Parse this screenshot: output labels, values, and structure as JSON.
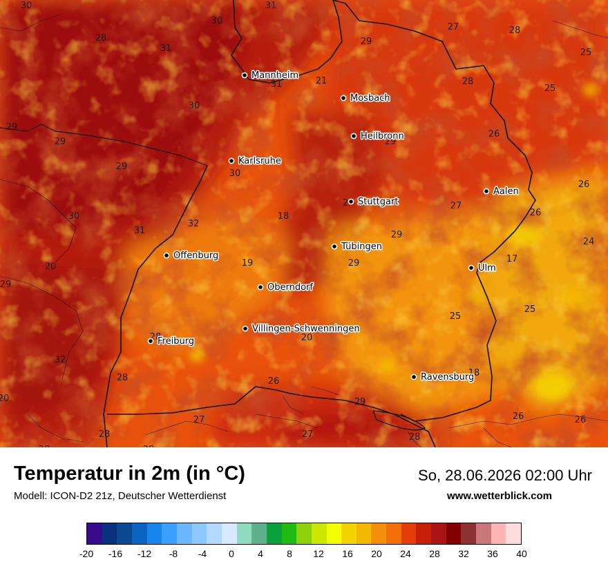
{
  "title": "Temperatur in 2m (in °C)",
  "subtitle": "Modell: ICON-D2 21z, Deutscher Wetterdienst",
  "datetime": "So, 28.06.2026 02:00 Uhr",
  "website": "www.wetterblick.com",
  "colorbar": {
    "min": -20,
    "max": 40,
    "step": 2,
    "tick_labels": [
      "-20",
      "-16",
      "-12",
      "-8",
      "-4",
      "0",
      "4",
      "8",
      "12",
      "16",
      "20",
      "24",
      "28",
      "32",
      "36",
      "40"
    ],
    "colors": [
      "#3a0a8c",
      "#07317c",
      "#0a4890",
      "#0b63c4",
      "#1786ec",
      "#3aa0ff",
      "#6cb8ff",
      "#8dc8ff",
      "#b4d9ff",
      "#d6e9ff",
      "#8fdbbf",
      "#5fb08c",
      "#0aa03c",
      "#20bb10",
      "#8fd00a",
      "#cde800",
      "#f4ff00",
      "#f4d400",
      "#f4b800",
      "#f48e0a",
      "#f46e0a",
      "#e63c0a",
      "#c81e0a",
      "#aa1414",
      "#820000",
      "#8c3232",
      "#c87878",
      "#ffb4b4",
      "#ffdcdc"
    ]
  },
  "cities": [
    {
      "name": "Mannheim"
    },
    {
      "name": "Mosbach"
    },
    {
      "name": "Heilbronn"
    },
    {
      "name": "Karlsruhe"
    },
    {
      "name": "Stuttgart"
    },
    {
      "name": "Aalen"
    },
    {
      "name": "Tübingen"
    },
    {
      "name": "Offenburg"
    },
    {
      "name": "Ulm"
    },
    {
      "name": "Oberndorf"
    },
    {
      "name": "Villingen-Schwenningen"
    },
    {
      "name": "Freiburg"
    },
    {
      "name": "Ravensburg"
    }
  ],
  "temperature_labels": [
    "30",
    "31",
    "30",
    "28",
    "31",
    "31",
    "21",
    "27",
    "28",
    "29",
    "25",
    "28",
    "25",
    "30",
    "29",
    "29",
    "29",
    "26",
    "29",
    "30",
    "26",
    "2",
    "27",
    "26",
    "30",
    "31",
    "32",
    "18",
    "29",
    "24",
    "20",
    "19",
    "29",
    "17",
    "29",
    "25",
    "25",
    "20",
    "28",
    "32",
    "18",
    "28",
    "26",
    "20",
    "29",
    "26",
    "26",
    "27",
    "28",
    "27",
    "28",
    "28",
    "28"
  ]
}
